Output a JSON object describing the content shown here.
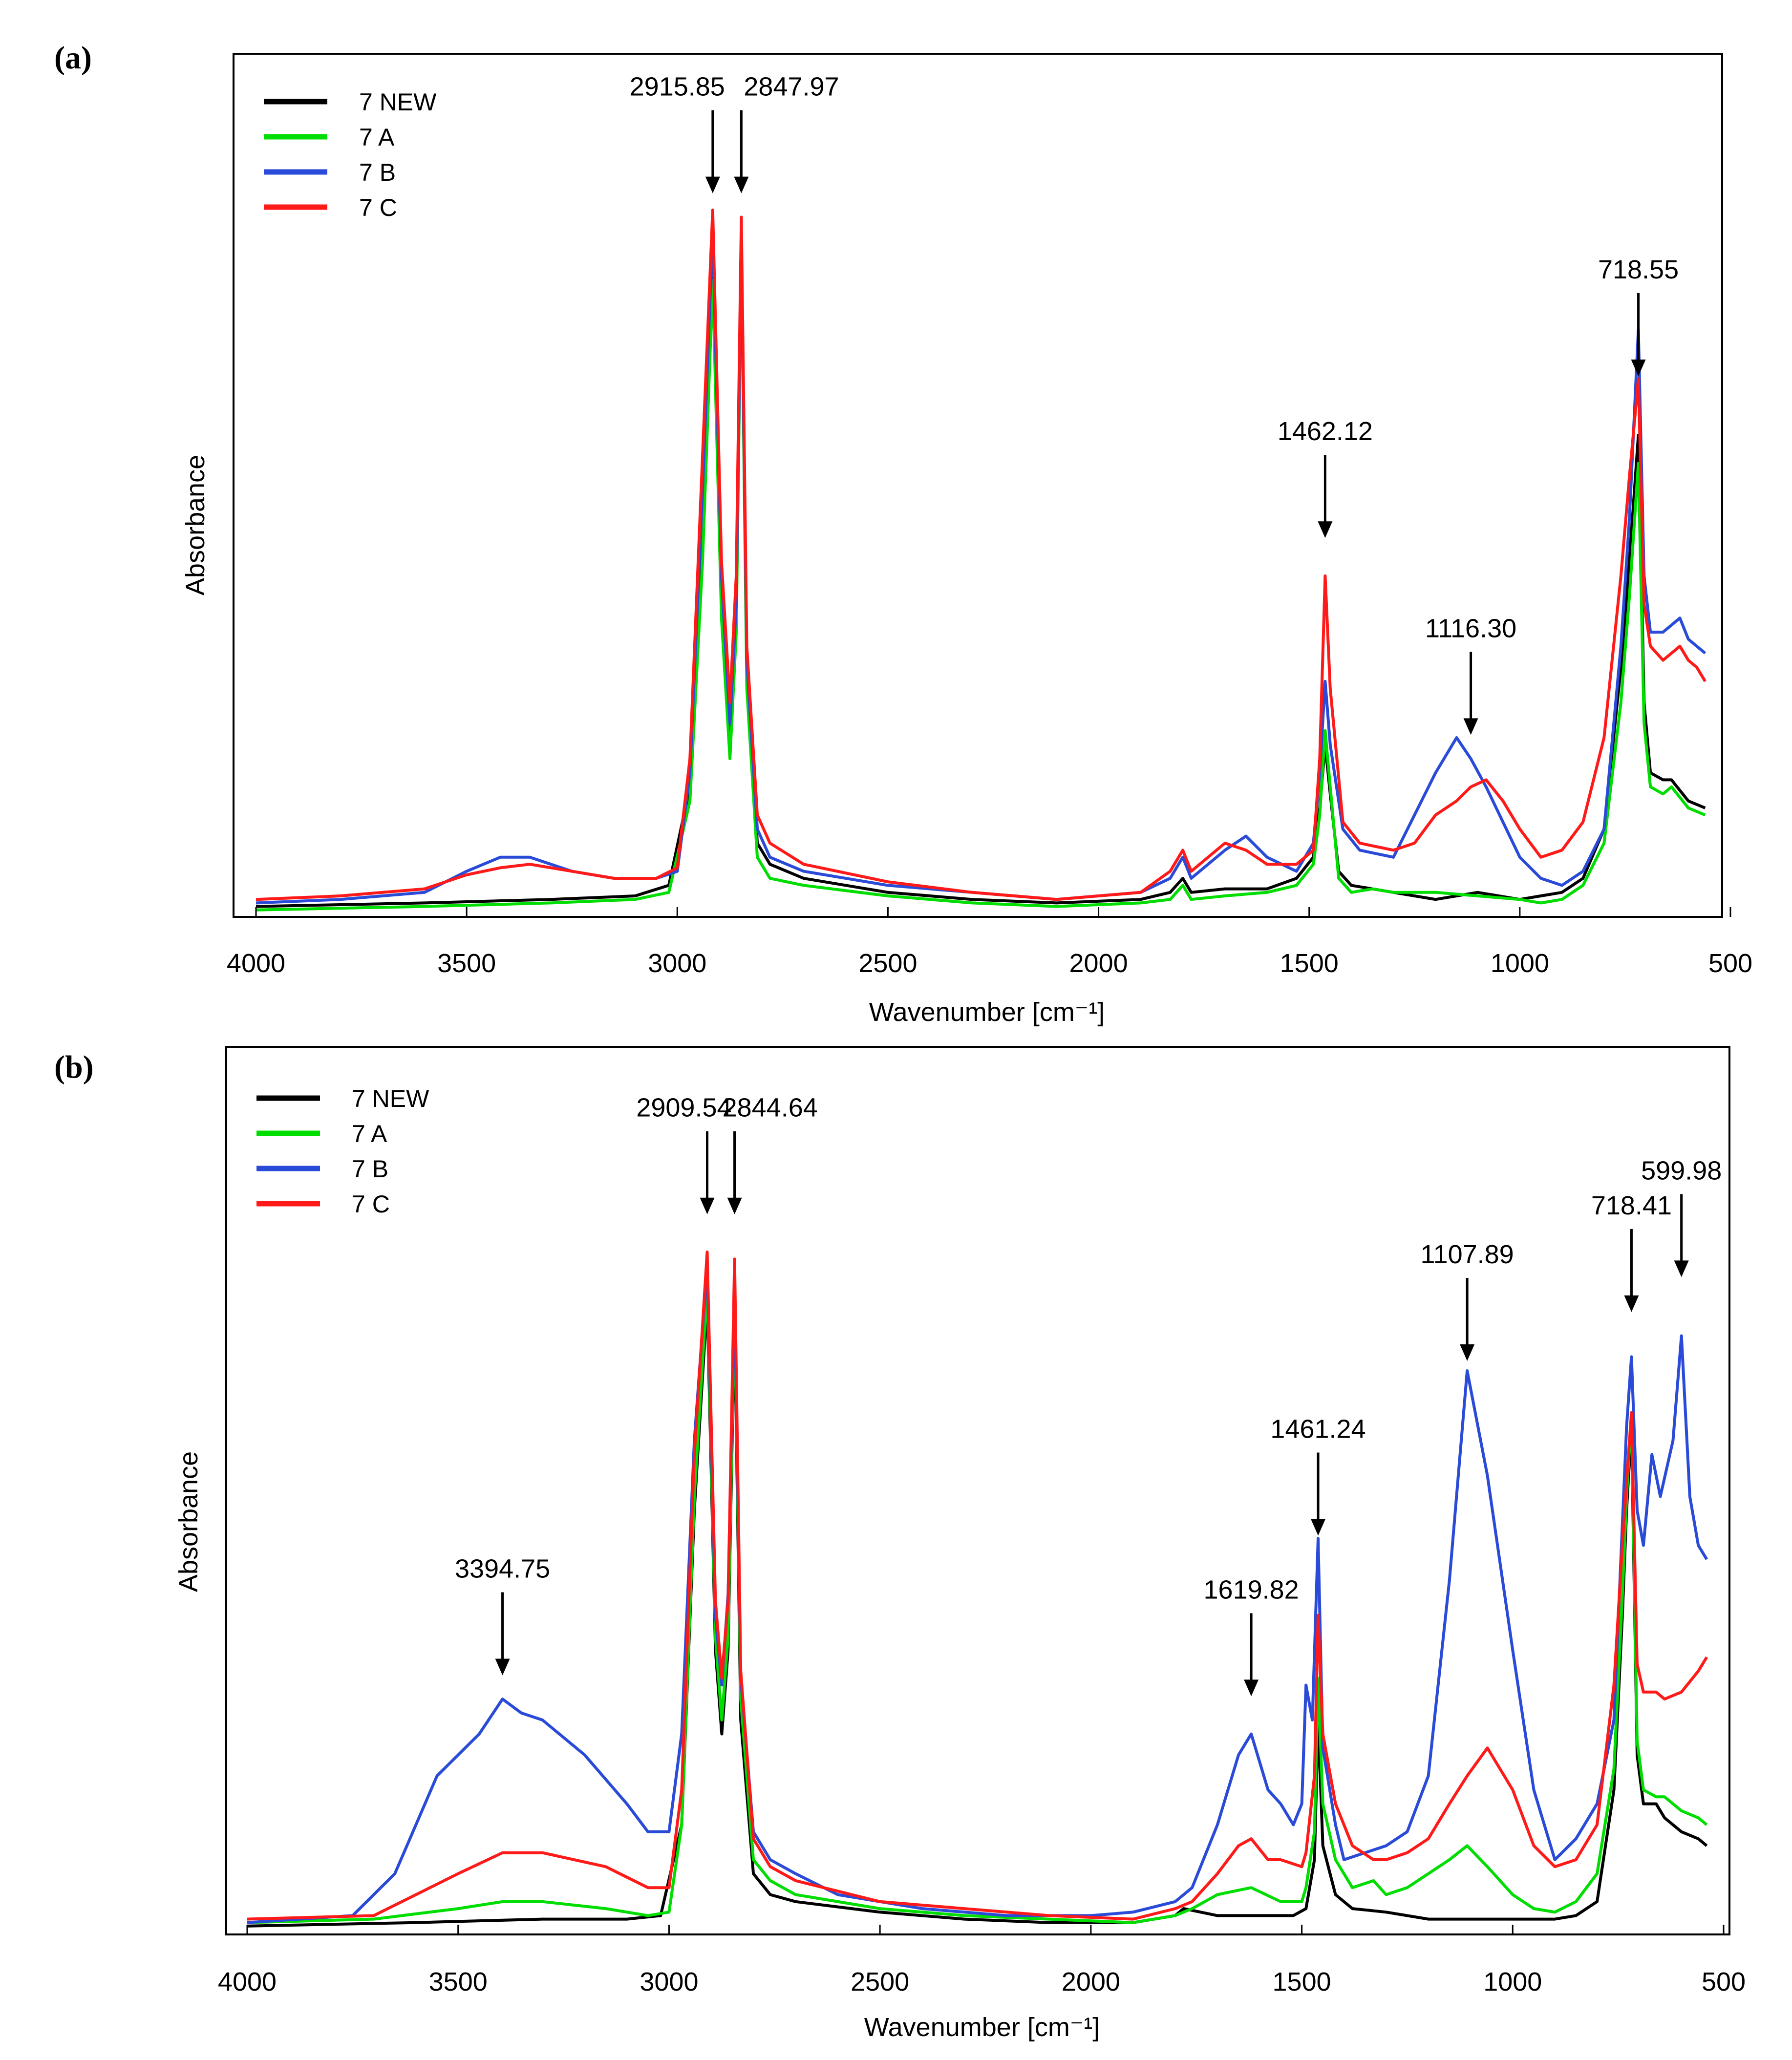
{
  "figure": {
    "panels": [
      "(a)",
      "(b)"
    ]
  },
  "colors": {
    "7 NEW": "#000000",
    "7 A": "#00dd00",
    "7 B": "#2a4ad8",
    "7 C": "#ff1a1a",
    "axis": "#000000",
    "arrow": "#000000"
  },
  "chart_data": [
    {
      "type": "line",
      "panel": "(a)",
      "title": "",
      "xlabel": "Wavenumber [cm⁻¹]",
      "ylabel": "Absorbance",
      "xlim": [
        4000,
        500
      ],
      "ylim": [
        0,
        100
      ],
      "xticks": [
        4000,
        3500,
        3000,
        2500,
        2000,
        1500,
        1000,
        500
      ],
      "legend_position": "top-left",
      "legend": [
        "7 NEW",
        "7 A",
        "7 B",
        "7 C"
      ],
      "annotations": [
        {
          "label": "2915.85",
          "x": 2915.85,
          "y": 101
        },
        {
          "label": "2847.97",
          "x": 2847.97,
          "y": 101
        },
        {
          "label": "1462.12",
          "x": 1462.12,
          "y": 52
        },
        {
          "label": "1116.30",
          "x": 1116.3,
          "y": 24
        },
        {
          "label": "718.55",
          "x": 718.55,
          "y": 75
        }
      ],
      "series": [
        {
          "name": "7 NEW",
          "x": [
            4000,
            3600,
            3300,
            3100,
            3020,
            2970,
            2940,
            2915.85,
            2895,
            2875,
            2860,
            2847.97,
            2835,
            2810,
            2780,
            2700,
            2500,
            2300,
            2100,
            1900,
            1830,
            1800,
            1780,
            1700,
            1600,
            1530,
            1490,
            1475,
            1462.12,
            1450,
            1430,
            1400,
            1350,
            1300,
            1200,
            1100,
            1000,
            950,
            900,
            850,
            800,
            760,
            740,
            718.55,
            705,
            690,
            660,
            640,
            600,
            560
          ],
          "y": [
            1,
            1.5,
            2,
            2.5,
            4,
            18,
            55,
            92,
            45,
            25,
            42,
            95,
            35,
            10,
            7,
            5,
            3,
            2,
            1.5,
            2,
            3,
            5,
            3,
            3.5,
            3.5,
            5,
            8,
            15,
            24,
            17,
            6,
            4,
            3.5,
            3,
            2,
            3,
            2,
            2.5,
            3,
            5,
            12,
            35,
            50,
            68,
            30,
            20,
            19,
            19,
            16,
            15
          ]
        },
        {
          "name": "7 A",
          "x": [
            4000,
            3600,
            3300,
            3100,
            3020,
            2970,
            2940,
            2915.85,
            2895,
            2875,
            2860,
            2847.97,
            2835,
            2810,
            2780,
            2700,
            2500,
            2300,
            2100,
            1900,
            1830,
            1800,
            1780,
            1700,
            1600,
            1530,
            1490,
            1475,
            1462.12,
            1450,
            1430,
            1400,
            1350,
            1300,
            1200,
            1100,
            1000,
            950,
            900,
            850,
            800,
            760,
            740,
            718.55,
            705,
            690,
            660,
            640,
            600,
            560
          ],
          "y": [
            0.5,
            1,
            1.5,
            2,
            3,
            16,
            50,
            90,
            42,
            22,
            40,
            94,
            32,
            8,
            5,
            4,
            2.5,
            1.5,
            1,
            1.5,
            2,
            4,
            2,
            2.5,
            3,
            4,
            7,
            14,
            26,
            18,
            5,
            3,
            3.5,
            3,
            3,
            2.5,
            2,
            1.5,
            2,
            4,
            10,
            30,
            45,
            64,
            27,
            18,
            17,
            18,
            15,
            14
          ]
        },
        {
          "name": "7 B",
          "x": [
            4000,
            3800,
            3600,
            3500,
            3420,
            3350,
            3250,
            3150,
            3050,
            3000,
            2970,
            2940,
            2915.85,
            2895,
            2875,
            2860,
            2847.97,
            2835,
            2810,
            2780,
            2700,
            2500,
            2300,
            2100,
            1900,
            1830,
            1800,
            1780,
            1700,
            1650,
            1600,
            1530,
            1490,
            1475,
            1462.12,
            1450,
            1420,
            1380,
            1300,
            1250,
            1200,
            1150,
            1116.3,
            1080,
            1040,
            1000,
            950,
            900,
            850,
            800,
            760,
            740,
            718.55,
            705,
            690,
            660,
            620,
            600,
            580,
            560
          ],
          "y": [
            1.5,
            2,
            3,
            6,
            8,
            8,
            6,
            5,
            5,
            6,
            20,
            60,
            97,
            48,
            27,
            44,
            95,
            36,
            12,
            8,
            6,
            4,
            3,
            2,
            3,
            5,
            8,
            5,
            9,
            11,
            8,
            6,
            10,
            20,
            33,
            24,
            12,
            9,
            8,
            14,
            20,
            25,
            22,
            18,
            13,
            8,
            5,
            4,
            6,
            12,
            38,
            56,
            83,
            48,
            40,
            40,
            42,
            39,
            38,
            37
          ]
        },
        {
          "name": "7 C",
          "x": [
            4000,
            3800,
            3600,
            3500,
            3420,
            3350,
            3250,
            3150,
            3050,
            3000,
            2970,
            2940,
            2915.85,
            2895,
            2875,
            2860,
            2847.97,
            2835,
            2810,
            2780,
            2700,
            2500,
            2300,
            2100,
            1900,
            1830,
            1800,
            1780,
            1700,
            1650,
            1600,
            1530,
            1490,
            1475,
            1462.12,
            1450,
            1420,
            1380,
            1300,
            1250,
            1200,
            1150,
            1116.3,
            1080,
            1040,
            1000,
            950,
            900,
            850,
            800,
            760,
            740,
            718.55,
            705,
            690,
            660,
            620,
            600,
            580,
            560
          ],
          "y": [
            2,
            2.5,
            3.5,
            5.5,
            6.5,
            7,
            6,
            5,
            5,
            6.5,
            22,
            65,
            100,
            50,
            30,
            48,
            99,
            38,
            14,
            10,
            7,
            4.5,
            3,
            2,
            3,
            6,
            9,
            6,
            10,
            9,
            7,
            7,
            9,
            22,
            48,
            32,
            13,
            10,
            9,
            10,
            14,
            16,
            18,
            19,
            16,
            12,
            8,
            9,
            13,
            25,
            48,
            62,
            76,
            44,
            38,
            36,
            38,
            36,
            35,
            33
          ]
        }
      ]
    },
    {
      "type": "line",
      "panel": "(b)",
      "title": "",
      "xlabel": "Wavenumber [cm⁻¹]",
      "ylabel": "Absorbance",
      "xlim": [
        4000,
        500
      ],
      "ylim": [
        0,
        100
      ],
      "xticks": [
        4000,
        3500,
        3000,
        2500,
        2000,
        1500,
        1000,
        500
      ],
      "legend_position": "top-left",
      "legend": [
        "7 NEW",
        "7 A",
        "7 B",
        "7 C"
      ],
      "annotations": [
        {
          "label": "2909.54",
          "x": 2909.54,
          "y": 101
        },
        {
          "label": "2844.64",
          "x": 2844.64,
          "y": 101
        },
        {
          "label": "3394.75",
          "x": 3394.75,
          "y": 35
        },
        {
          "label": "1619.82",
          "x": 1619.82,
          "y": 32
        },
        {
          "label": "1461.24",
          "x": 1461.24,
          "y": 55
        },
        {
          "label": "1107.89",
          "x": 1107.89,
          "y": 80
        },
        {
          "label": "718.41",
          "x": 718.41,
          "y": 87
        },
        {
          "label": "599.98",
          "x": 599.98,
          "y": 92
        }
      ],
      "series": [
        {
          "name": "7 NEW",
          "x": [
            4000,
            3600,
            3300,
            3100,
            3020,
            2970,
            2940,
            2909.54,
            2890,
            2875,
            2860,
            2844.64,
            2830,
            2800,
            2760,
            2700,
            2500,
            2300,
            2100,
            1900,
            1800,
            1780,
            1700,
            1600,
            1520,
            1490,
            1470,
            1461.24,
            1450,
            1420,
            1380,
            1300,
            1200,
            1100,
            1000,
            900,
            850,
            800,
            760,
            740,
            730,
            718.41,
            705,
            690,
            660,
            640,
            600,
            560,
            540
          ],
          "y": [
            0.5,
            1,
            1.5,
            1.5,
            2,
            15,
            60,
            90,
            40,
            28,
            40,
            88,
            30,
            8,
            5,
            4,
            2.5,
            1.5,
            1,
            1,
            2,
            3,
            2,
            2,
            2,
            3,
            10,
            30,
            12,
            5,
            3,
            2.5,
            1.5,
            1.5,
            1.5,
            1.5,
            2,
            4,
            20,
            45,
            60,
            72,
            25,
            18,
            18,
            16,
            14,
            13,
            12
          ]
        },
        {
          "name": "7 A",
          "x": [
            4000,
            3700,
            3500,
            3394.75,
            3300,
            3150,
            3050,
            3000,
            2970,
            2940,
            2909.54,
            2890,
            2875,
            2860,
            2844.64,
            2830,
            2800,
            2760,
            2700,
            2500,
            2300,
            2100,
            1900,
            1800,
            1760,
            1700,
            1619.82,
            1550,
            1500,
            1490,
            1470,
            1461.24,
            1450,
            1420,
            1380,
            1330,
            1300,
            1250,
            1200,
            1150,
            1107.89,
            1060,
            1000,
            950,
            900,
            850,
            800,
            760,
            740,
            730,
            718.41,
            705,
            690,
            660,
            640,
            600,
            560,
            540
          ],
          "y": [
            1,
            1.5,
            3,
            4,
            4,
            3,
            2,
            2.5,
            15,
            62,
            92,
            42,
            30,
            42,
            90,
            33,
            10,
            7,
            5,
            3,
            2,
            1.5,
            1,
            2,
            3,
            5,
            6,
            4,
            4,
            6,
            14,
            36,
            18,
            10,
            6,
            7,
            5,
            6,
            8,
            10,
            12,
            9,
            5,
            3,
            2.5,
            4,
            8,
            23,
            48,
            62,
            74,
            27,
            20,
            19,
            19,
            17,
            16,
            15
          ]
        },
        {
          "name": "7 B",
          "x": [
            4000,
            3750,
            3650,
            3550,
            3500,
            3450,
            3394.75,
            3350,
            3300,
            3200,
            3100,
            3050,
            3000,
            2970,
            2940,
            2909.54,
            2890,
            2875,
            2860,
            2844.64,
            2830,
            2800,
            2760,
            2700,
            2600,
            2500,
            2400,
            2300,
            2200,
            2100,
            2000,
            1900,
            1800,
            1760,
            1700,
            1650,
            1619.82,
            1580,
            1550,
            1520,
            1500,
            1490,
            1475,
            1461.24,
            1450,
            1420,
            1400,
            1350,
            1300,
            1250,
            1200,
            1150,
            1107.89,
            1060,
            1000,
            950,
            900,
            850,
            800,
            760,
            740,
            730,
            718.41,
            705,
            690,
            670,
            650,
            620,
            599.98,
            580,
            560,
            540
          ],
          "y": [
            1,
            2,
            8,
            22,
            25,
            28,
            33,
            31,
            30,
            25,
            18,
            14,
            14,
            28,
            70,
            95,
            45,
            35,
            48,
            92,
            36,
            14,
            10,
            8,
            5,
            4,
            3,
            2.5,
            2,
            2,
            2,
            2.5,
            4,
            6,
            15,
            25,
            28,
            20,
            18,
            15,
            18,
            35,
            30,
            56,
            26,
            15,
            10,
            11,
            12,
            14,
            22,
            50,
            80,
            65,
            40,
            20,
            10,
            13,
            18,
            30,
            58,
            72,
            82,
            60,
            55,
            68,
            62,
            70,
            85,
            62,
            55,
            53
          ]
        },
        {
          "name": "7 C",
          "x": [
            4000,
            3700,
            3500,
            3394.75,
            3300,
            3150,
            3050,
            3000,
            2970,
            2940,
            2909.54,
            2890,
            2875,
            2860,
            2844.64,
            2830,
            2800,
            2760,
            2700,
            2500,
            2300,
            2100,
            1900,
            1800,
            1760,
            1700,
            1650,
            1619.82,
            1580,
            1550,
            1500,
            1490,
            1470,
            1461.24,
            1450,
            1420,
            1380,
            1330,
            1300,
            1250,
            1200,
            1150,
            1107.89,
            1060,
            1000,
            950,
            900,
            850,
            800,
            760,
            740,
            730,
            718.41,
            705,
            690,
            660,
            640,
            600,
            560,
            540
          ],
          "y": [
            1.5,
            2,
            8,
            11,
            11,
            9,
            6,
            6,
            20,
            68,
            97,
            47,
            36,
            47,
            96,
            37,
            13,
            9,
            7,
            4,
            3,
            2,
            1.5,
            3,
            4,
            8,
            12,
            13,
            10,
            10,
            9,
            11,
            22,
            45,
            28,
            18,
            12,
            10,
            10,
            11,
            13,
            18,
            22,
            26,
            20,
            12,
            9,
            10,
            15,
            35,
            55,
            64,
            74,
            38,
            34,
            34,
            33,
            34,
            37,
            39
          ]
        }
      ]
    }
  ]
}
